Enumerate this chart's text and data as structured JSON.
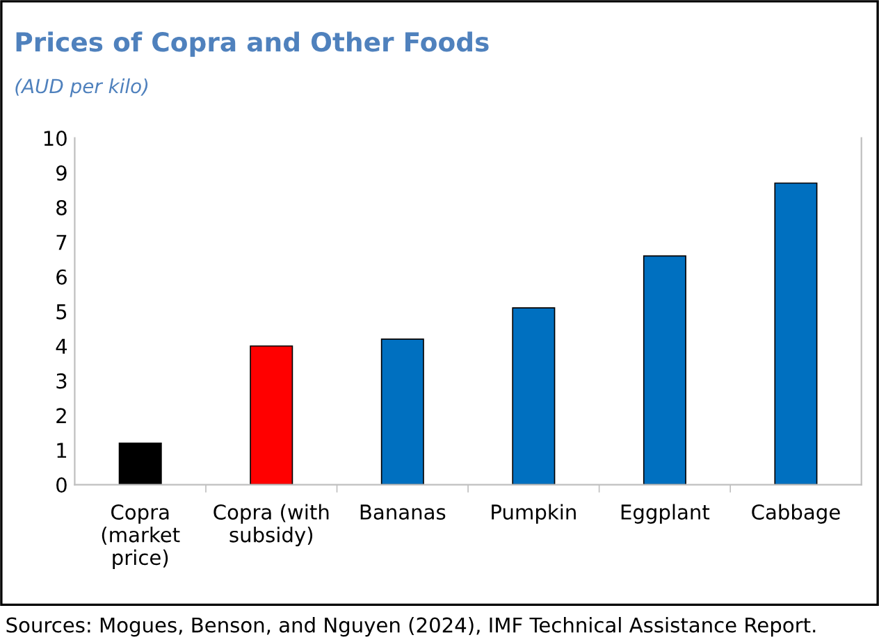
{
  "chart_data": {
    "type": "bar",
    "title": "Prices of Copra and Other Foods",
    "subtitle": "(AUD per kilo)",
    "categories": [
      "Copra\n(market\nprice)",
      "Copra (with\nsubsidy)",
      "Bananas",
      "Pumpkin",
      "Eggplant",
      "Cabbage"
    ],
    "values": [
      1.2,
      4.0,
      4.2,
      5.1,
      6.6,
      8.7
    ],
    "colors": [
      "#000000",
      "#ff0000",
      "#0070c0",
      "#0070c0",
      "#0070c0",
      "#0070c0"
    ],
    "ylim": [
      0,
      10
    ],
    "yticks": [
      0,
      1,
      2,
      3,
      4,
      5,
      6,
      7,
      8,
      9,
      10
    ],
    "grid": false,
    "legend": false,
    "annotations": [
      "Sources: Mogues, Benson, and Nguyen (2024), IMF Technical Assistance Report."
    ]
  }
}
